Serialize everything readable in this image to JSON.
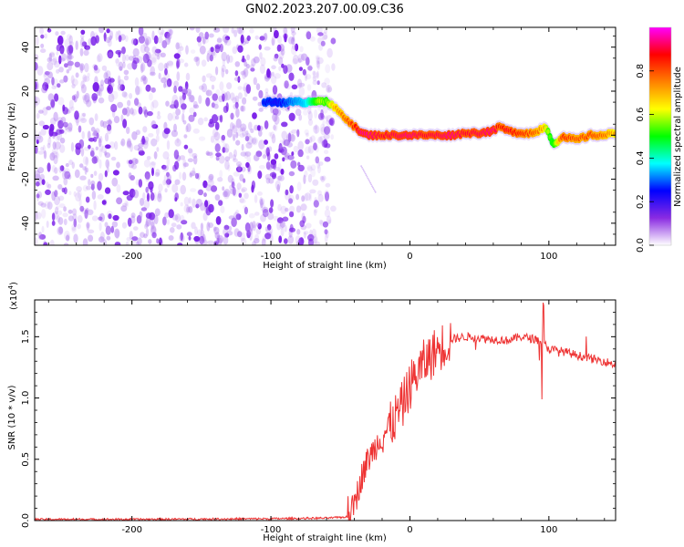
{
  "title": "GN02.2023.207.00.09.C36",
  "chart_data": [
    {
      "type": "heatmap",
      "xlabel": "Height of straight line (km)",
      "ylabel": "Frequency (Hz)",
      "xlim": [
        -270,
        148
      ],
      "ylim": [
        -50,
        49
      ],
      "xticks": [
        -200,
        -100,
        0,
        100
      ],
      "yticks": [
        -40,
        -20,
        0,
        20,
        40
      ],
      "colorbar": {
        "label": "Normalized spectral amplitude",
        "range": [
          0,
          1
        ],
        "ticks": [
          "0.0",
          "0.2",
          "0.4",
          "0.6",
          "0.8"
        ],
        "colormap": [
          "#ffffff",
          "#8a2be2",
          "#0000ff",
          "#00ffff",
          "#00ff00",
          "#ffff00",
          "#ff8000",
          "#ff0000",
          "#ff00ff"
        ]
      },
      "noise_region_x": [
        -270,
        -55
      ],
      "ridge": {
        "x": [
          -105,
          -95,
          -85,
          -75,
          -65,
          -60,
          -55,
          -50,
          -45,
          -40,
          -35,
          -30,
          -20,
          -10,
          0,
          10,
          20,
          30,
          40,
          50,
          60,
          65,
          70,
          80,
          90,
          97,
          100,
          103,
          110,
          120,
          130,
          140,
          148
        ],
        "freq": [
          15,
          15,
          15,
          15,
          16,
          15,
          13,
          10,
          7,
          4,
          1,
          0,
          0,
          0,
          0,
          0,
          0,
          0,
          1,
          1,
          2,
          4,
          2,
          1,
          1,
          4,
          1,
          -4,
          -1,
          -2,
          0,
          0,
          1
        ],
        "amp": [
          0.25,
          0.22,
          0.3,
          0.35,
          0.6,
          0.55,
          0.7,
          0.75,
          0.8,
          0.85,
          0.95,
          0.95,
          0.9,
          0.92,
          0.95,
          0.9,
          0.92,
          0.95,
          0.9,
          0.92,
          0.95,
          0.85,
          0.9,
          0.85,
          0.8,
          0.7,
          0.55,
          0.5,
          0.85,
          0.8,
          0.82,
          0.78,
          0.7
        ]
      }
    },
    {
      "type": "line",
      "xlabel": "Height of straight line (km)",
      "ylabel": "SNR (10 * v/v)",
      "y_multiplier": "(x10",
      "y_multiplier_exp": "4",
      "y_multiplier_close": ")",
      "xlim": [
        -270,
        148
      ],
      "ylim": [
        0,
        1.8
      ],
      "xticks": [
        -200,
        -100,
        0,
        100
      ],
      "yticks": [
        "0.0",
        "0.5",
        "1.0",
        "1.5"
      ],
      "series": [
        {
          "color": "#ee3333",
          "x": [
            -270,
            -200,
            -100,
            -60,
            -45,
            -40,
            -35,
            -30,
            -25,
            -20,
            -15,
            -10,
            -5,
            0,
            5,
            10,
            20,
            30,
            40,
            50,
            60,
            70,
            80,
            90,
            95,
            100,
            110,
            120,
            130,
            140,
            148
          ],
          "y": [
            0.01,
            0.01,
            0.015,
            0.02,
            0.03,
            0.12,
            0.35,
            0.5,
            0.6,
            0.7,
            0.75,
            0.85,
            0.95,
            1.1,
            1.2,
            1.28,
            1.4,
            1.48,
            1.5,
            1.49,
            1.48,
            1.47,
            1.5,
            1.48,
            1.46,
            1.4,
            1.38,
            1.35,
            1.32,
            1.3,
            1.27
          ]
        }
      ]
    }
  ]
}
